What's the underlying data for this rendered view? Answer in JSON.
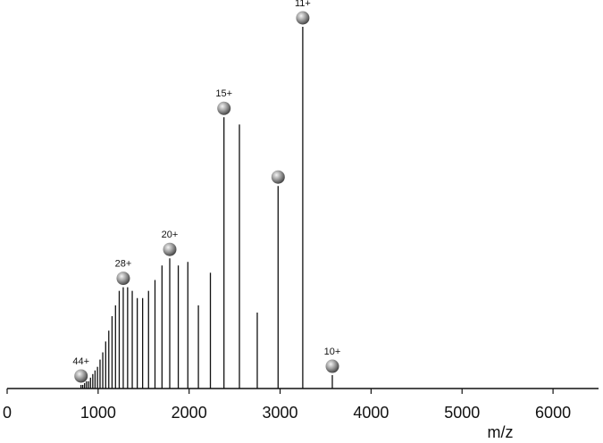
{
  "chart_data": {
    "type": "stick",
    "x_label": "m/z",
    "x": [
      812,
      831,
      851,
      872,
      894,
      916,
      941,
      966,
      993,
      1021,
      1051,
      1083,
      1117,
      1153,
      1191,
      1232,
      1276,
      1324,
      1375,
      1430,
      1489,
      1554,
      1625,
      1702,
      1787,
      1881,
      1986,
      2102,
      2234,
      2383,
      2553,
      2749,
      2978,
      3249,
      3574
    ],
    "values": [
      1,
      1,
      1.5,
      2,
      2,
      3,
      4,
      5,
      6,
      8,
      10,
      13,
      16,
      20,
      23,
      27,
      28,
      28,
      27,
      25,
      25,
      27,
      30,
      34,
      36,
      34,
      35,
      23,
      32,
      75,
      73,
      21,
      56,
      100,
      3.7
    ],
    "color": "#111111",
    "xlim": [
      0,
      6500
    ],
    "xticks": [
      0,
      1000,
      2000,
      3000,
      4000,
      5000,
      6000
    ],
    "ylim": [
      0,
      100
    ],
    "annotations": [
      {
        "x": 812,
        "label": "44+"
      },
      {
        "x": 1276,
        "label": "28+"
      },
      {
        "x": 1787,
        "label": "20+"
      },
      {
        "x": 2383,
        "label": "15+"
      },
      {
        "x": 2978,
        "label": null
      },
      {
        "x": 3249,
        "label": "11+"
      },
      {
        "x": 3574,
        "label": "10+"
      }
    ]
  }
}
